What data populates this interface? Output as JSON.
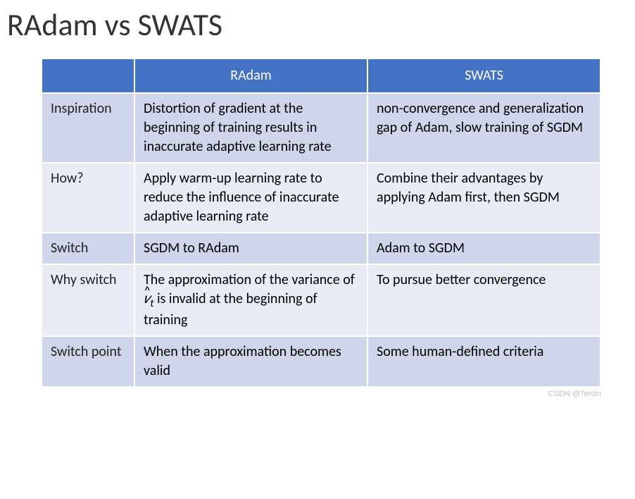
{
  "title": "RAdam vs SWATS",
  "table": {
    "header_bg": "#4472c4",
    "header_text_color": "#ffffff",
    "row_even_bg": "#cfd5ea",
    "row_odd_bg": "#e9ebf5",
    "border_color": "#ffffff",
    "font_size_body": 20,
    "font_size_title": 44,
    "columns": [
      "",
      "RAdam",
      "SWATS"
    ],
    "rows": [
      {
        "label": "Inspiration",
        "radam": "Distortion of gradient at the beginning of training results in inaccurate adaptive learning rate",
        "swats": "non-convergence and generalization gap of Adam, slow training of SGDM"
      },
      {
        "label": "How?",
        "radam": "Apply warm-up learning rate to reduce the influence of inaccurate adaptive learning rate",
        "swats": "Combine their advantages by applying Adam first, then SGDM"
      },
      {
        "label": "Switch",
        "radam": "SGDM to RAdam",
        "swats": "Adam to SGDM"
      },
      {
        "label": "Why switch",
        "radam_prefix": "The approximation of the variance of ",
        "radam_var": "v̂",
        "radam_var_sub": "t",
        "radam_suffix": " is invalid at the beginning of training",
        "swats": "To pursue better convergence"
      },
      {
        "label": "Switch point",
        "radam": "When the approximation becomes valid",
        "swats": "Some human-defined criteria"
      }
    ]
  },
  "watermark": "CSDN @Teroin"
}
